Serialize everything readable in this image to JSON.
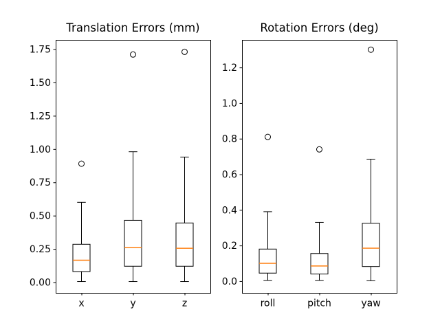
{
  "figure": {
    "background_color": "#ffffff",
    "text_color": "#000000",
    "box_edge_color": "#000000",
    "median_color": "#ff7f0e"
  },
  "chart_data": [
    {
      "type": "boxplot",
      "title": "Translation Errors (mm)",
      "xlabel": "",
      "ylabel": "",
      "grid": false,
      "categories": [
        "x",
        "y",
        "z"
      ],
      "ylim": [
        -0.08,
        1.82
      ],
      "yticks": [
        {
          "value": 0.0,
          "label": "0.00"
        },
        {
          "value": 0.25,
          "label": "0.25"
        },
        {
          "value": 0.5,
          "label": "0.50"
        },
        {
          "value": 0.75,
          "label": "0.75"
        },
        {
          "value": 1.0,
          "label": "1.00"
        },
        {
          "value": 1.25,
          "label": "1.25"
        },
        {
          "value": 1.5,
          "label": "1.50"
        },
        {
          "value": 1.75,
          "label": "1.75"
        }
      ],
      "series": [
        {
          "label": "x",
          "whislo": 0.005,
          "q1": 0.08,
          "med": 0.165,
          "q3": 0.285,
          "whishi": 0.6,
          "fliers": [
            0.89
          ]
        },
        {
          "label": "y",
          "whislo": 0.005,
          "q1": 0.12,
          "med": 0.26,
          "q3": 0.465,
          "whishi": 0.98,
          "fliers": [
            1.71
          ]
        },
        {
          "label": "z",
          "whislo": 0.005,
          "q1": 0.12,
          "med": 0.255,
          "q3": 0.445,
          "whishi": 0.94,
          "fliers": [
            1.73
          ]
        }
      ]
    },
    {
      "type": "boxplot",
      "title": "Rotation Errors (deg)",
      "xlabel": "",
      "ylabel": "",
      "grid": false,
      "categories": [
        "roll",
        "pitch",
        "yaw"
      ],
      "ylim": [
        -0.066,
        1.355
      ],
      "yticks": [
        {
          "value": 0.0,
          "label": "0.0"
        },
        {
          "value": 0.2,
          "label": "0.2"
        },
        {
          "value": 0.4,
          "label": "0.4"
        },
        {
          "value": 0.6,
          "label": "0.6"
        },
        {
          "value": 0.8,
          "label": "0.8"
        },
        {
          "value": 1.0,
          "label": "1.0"
        },
        {
          "value": 1.2,
          "label": "1.2"
        }
      ],
      "series": [
        {
          "label": "roll",
          "whislo": 0.004,
          "q1": 0.045,
          "med": 0.1,
          "q3": 0.18,
          "whishi": 0.39,
          "fliers": [
            0.81
          ]
        },
        {
          "label": "pitch",
          "whislo": 0.004,
          "q1": 0.04,
          "med": 0.085,
          "q3": 0.155,
          "whishi": 0.33,
          "fliers": [
            0.74
          ]
        },
        {
          "label": "yaw",
          "whislo": 0.002,
          "q1": 0.082,
          "med": 0.185,
          "q3": 0.325,
          "whishi": 0.685,
          "fliers": [
            1.3
          ]
        }
      ]
    }
  ]
}
